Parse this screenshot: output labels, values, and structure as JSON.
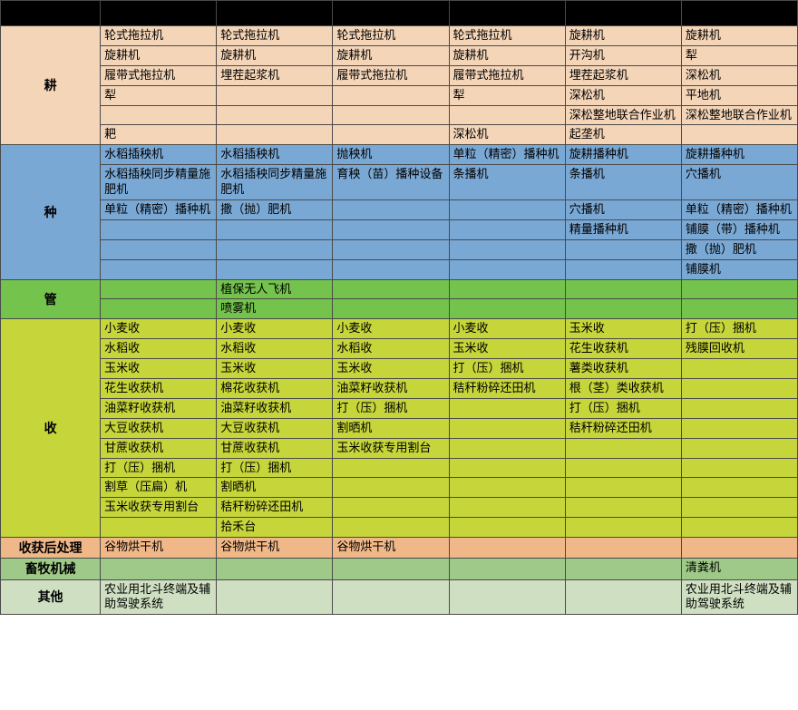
{
  "colors": {
    "geng": "#f4d5b8",
    "zhong": "#7aa8d4",
    "guan": "#73c34d",
    "shou": "#c5d53a",
    "shouhou": "#f0b888",
    "xumu": "#9fc988",
    "qita": "#cfe0c2",
    "header": "#000000",
    "border": "#4a4a4a"
  },
  "num_cols": 7,
  "sections": [
    {
      "label": "耕",
      "color": "geng",
      "rows": [
        [
          "轮式拖拉机",
          "轮式拖拉机",
          "轮式拖拉机",
          "轮式拖拉机",
          "旋耕机",
          "旋耕机"
        ],
        [
          "旋耕机",
          "旋耕机",
          "旋耕机",
          "旋耕机",
          "开沟机",
          "犁"
        ],
        [
          "履带式拖拉机",
          "埋茬起浆机",
          "履带式拖拉机",
          "履带式拖拉机",
          "埋茬起浆机",
          "深松机"
        ],
        [
          "犁",
          "",
          "",
          "犁",
          "深松机",
          "平地机"
        ],
        [
          "",
          "",
          "",
          "",
          "深松整地联合作业机",
          "深松整地联合作业机"
        ],
        [
          "耙",
          "",
          "",
          "深松机",
          "起垄机",
          ""
        ]
      ]
    },
    {
      "label": "种",
      "color": "zhong",
      "rows": [
        [
          "水稻插秧机",
          "水稻插秧机",
          "抛秧机",
          "单粒（精密）播种机",
          "旋耕播种机",
          "旋耕播种机"
        ],
        [
          "水稻插秧同步精量施肥机",
          "水稻插秧同步精量施肥机",
          "育秧（苗）播种设备",
          "条播机",
          "条播机",
          "穴播机"
        ],
        [
          "单粒（精密）播种机",
          "撒（抛）肥机",
          "",
          "",
          "穴播机",
          "单粒（精密）播种机"
        ],
        [
          "",
          "",
          "",
          "",
          "精量播种机",
          "铺膜（带）播种机"
        ],
        [
          "",
          "",
          "",
          "",
          "",
          "撒（抛）肥机"
        ],
        [
          "",
          "",
          "",
          "",
          "",
          "铺膜机"
        ]
      ]
    },
    {
      "label": "管",
      "color": "guan",
      "rows": [
        [
          "",
          "植保无人飞机",
          "",
          "",
          "",
          ""
        ],
        [
          "",
          "喷雾机",
          "",
          "",
          "",
          ""
        ]
      ]
    },
    {
      "label": "收",
      "color": "shou",
      "rows": [
        [
          "小麦收",
          "小麦收",
          "小麦收",
          "小麦收",
          "玉米收",
          "打（压）捆机"
        ],
        [
          "水稻收",
          "水稻收",
          "水稻收",
          "玉米收",
          "花生收获机",
          "残膜回收机"
        ],
        [
          "玉米收",
          "玉米收",
          "玉米收",
          "打（压）捆机",
          "薯类收获机",
          ""
        ],
        [
          "花生收获机",
          "棉花收获机",
          "油菜籽收获机",
          "秸秆粉碎还田机",
          "根（茎）类收获机",
          ""
        ],
        [
          "油菜籽收获机",
          "油菜籽收获机",
          "打（压）捆机",
          "",
          "打（压）捆机",
          ""
        ],
        [
          "大豆收获机",
          "大豆收获机",
          "割晒机",
          "",
          "秸秆粉碎还田机",
          ""
        ],
        [
          "甘蔗收获机",
          "甘蔗收获机",
          "玉米收获专用割台",
          "",
          "",
          ""
        ],
        [
          "打（压）捆机",
          "打（压）捆机",
          "",
          "",
          "",
          ""
        ],
        [
          "割草（压扁）机",
          "割晒机",
          "",
          "",
          "",
          ""
        ],
        [
          "玉米收获专用割台",
          "秸秆粉碎还田机",
          "",
          "",
          "",
          ""
        ],
        [
          "",
          "拾禾台",
          "",
          "",
          "",
          ""
        ]
      ]
    },
    {
      "label": "收获后处理",
      "color": "shouhou",
      "rows": [
        [
          "谷物烘干机",
          "谷物烘干机",
          "谷物烘干机",
          "",
          "",
          ""
        ]
      ]
    },
    {
      "label": "畜牧机械",
      "color": "xumu",
      "rows": [
        [
          "",
          "",
          "",
          "",
          "",
          "清粪机"
        ]
      ]
    },
    {
      "label": "其他",
      "color": "qita",
      "rows": [
        [
          "农业用北斗终端及辅助驾驶系统",
          "",
          "",
          "",
          "",
          "农业用北斗终端及辅助驾驶系统"
        ]
      ]
    }
  ]
}
